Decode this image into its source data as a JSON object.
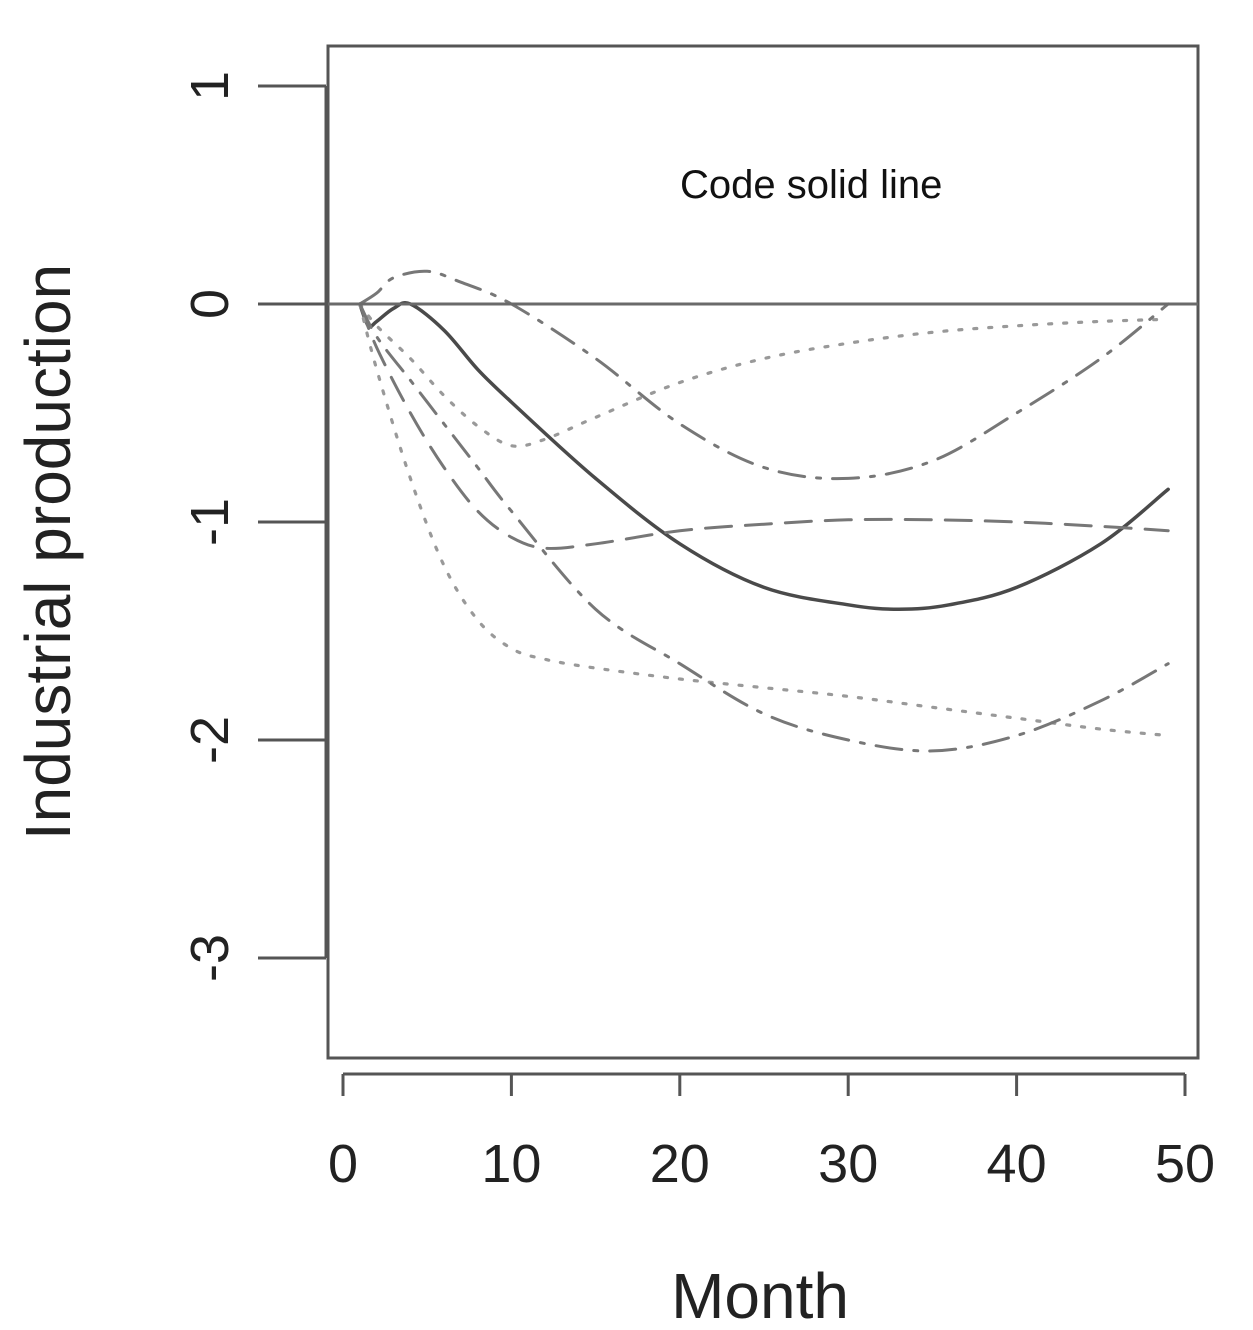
{
  "chart_data": {
    "type": "line",
    "xlabel": "Month",
    "ylabel": "Industrial production",
    "xlim": [
      -1,
      50
    ],
    "ylim": [
      -3.5,
      1.2
    ],
    "xticks": [
      0,
      10,
      20,
      30,
      40,
      50
    ],
    "yticks": [
      1,
      0,
      -1,
      -2,
      -3
    ],
    "hline": 0,
    "annotation": "Code solid line",
    "grid": false,
    "series": [
      {
        "style": "solid",
        "color": "#4a4a4a",
        "x": [
          1,
          1.5,
          2,
          3,
          4,
          6,
          8,
          10,
          15,
          20,
          25,
          30,
          33,
          36,
          40,
          45,
          49
        ],
        "y": [
          0,
          -0.1,
          -0.08,
          -0.02,
          0,
          -0.12,
          -0.3,
          -0.45,
          -0.8,
          -1.1,
          -1.3,
          -1.38,
          -1.4,
          -1.38,
          -1.3,
          -1.1,
          -0.85
        ]
      },
      {
        "style": "dashed",
        "color": "#777777",
        "x": [
          1,
          2,
          4,
          6,
          8,
          10,
          12,
          15,
          20,
          25,
          30,
          35,
          40,
          45,
          49
        ],
        "y": [
          0,
          -0.2,
          -0.5,
          -0.75,
          -0.95,
          -1.07,
          -1.12,
          -1.1,
          -1.04,
          -1.01,
          -0.99,
          -0.99,
          -1.0,
          -1.02,
          -1.04
        ]
      },
      {
        "style": "dotted",
        "color": "#999999",
        "x": [
          1,
          2,
          4,
          6,
          8,
          10,
          12,
          15,
          20,
          25,
          30,
          35,
          40,
          45,
          49
        ],
        "y": [
          0,
          -0.3,
          -0.8,
          -1.2,
          -1.45,
          -1.58,
          -1.63,
          -1.67,
          -1.72,
          -1.76,
          -1.8,
          -1.85,
          -1.9,
          -1.95,
          -1.98
        ]
      },
      {
        "style": "dotted",
        "color": "#999999",
        "x": [
          1,
          2,
          4,
          6,
          8,
          10,
          12,
          15,
          20,
          25,
          30,
          35,
          40,
          45,
          49
        ],
        "y": [
          0,
          -0.1,
          -0.25,
          -0.42,
          -0.56,
          -0.65,
          -0.62,
          -0.52,
          -0.36,
          -0.25,
          -0.18,
          -0.13,
          -0.1,
          -0.08,
          -0.07
        ]
      },
      {
        "style": "dashdot",
        "color": "#777777",
        "x": [
          1,
          2,
          3,
          5,
          7,
          10,
          15,
          20,
          25,
          30,
          35,
          40,
          45,
          49
        ],
        "y": [
          0,
          0.05,
          0.12,
          0.15,
          0.1,
          0.0,
          -0.25,
          -0.55,
          -0.75,
          -0.8,
          -0.72,
          -0.5,
          -0.25,
          0.0
        ]
      },
      {
        "style": "dashdot",
        "color": "#777777",
        "x": [
          1,
          2,
          4,
          6,
          8,
          10,
          15,
          20,
          25,
          30,
          35,
          40,
          45,
          49
        ],
        "y": [
          0,
          -0.15,
          -0.35,
          -0.55,
          -0.75,
          -0.95,
          -1.4,
          -1.65,
          -1.88,
          -2.0,
          -2.05,
          -1.98,
          -1.82,
          -1.65
        ]
      }
    ]
  }
}
